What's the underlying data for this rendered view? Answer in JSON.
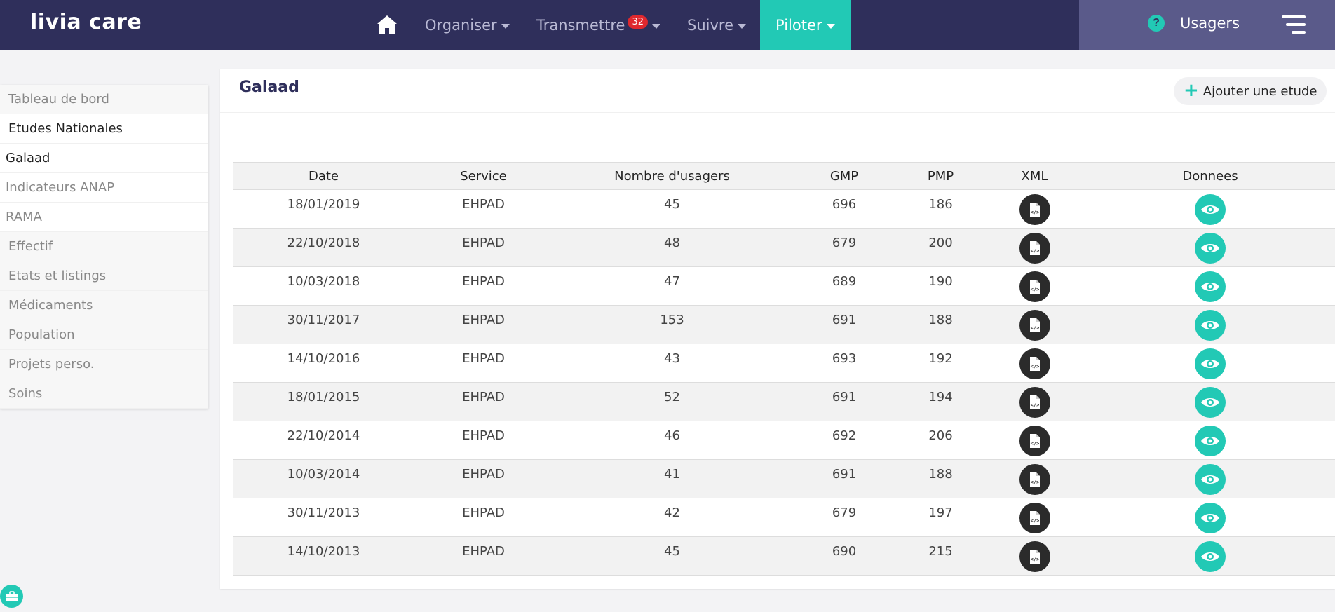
{
  "brand": "livia care",
  "nav": {
    "items": [
      {
        "label": "Organiser",
        "badge": ""
      },
      {
        "label": "Transmettre",
        "badge": "32"
      },
      {
        "label": "Suivre",
        "badge": ""
      },
      {
        "label": "Piloter",
        "badge": ""
      }
    ],
    "usagers": "Usagers",
    "help_icon_text": "?"
  },
  "sidebar": {
    "items": [
      {
        "label": "Tableau de bord"
      },
      {
        "label": "Etudes Nationales"
      },
      {
        "label": "Galaad"
      },
      {
        "label": "Indicateurs ANAP"
      },
      {
        "label": "RAMA"
      },
      {
        "label": "Effectif"
      },
      {
        "label": "Etats et listings"
      },
      {
        "label": "Médicaments"
      },
      {
        "label": "Population"
      },
      {
        "label": "Projets perso."
      },
      {
        "label": "Soins"
      }
    ]
  },
  "main": {
    "title": "Galaad",
    "add_button": "Ajouter une etude",
    "columns": [
      "Date",
      "Service",
      "Nombre d'usagers",
      "GMP",
      "PMP",
      "XML",
      "Donnees"
    ],
    "rows": [
      {
        "date": "18/01/2019",
        "service": "EHPAD",
        "usagers": "45",
        "gmp": "696",
        "pmp": "186"
      },
      {
        "date": "22/10/2018",
        "service": "EHPAD",
        "usagers": "48",
        "gmp": "679",
        "pmp": "200"
      },
      {
        "date": "10/03/2018",
        "service": "EHPAD",
        "usagers": "47",
        "gmp": "689",
        "pmp": "190"
      },
      {
        "date": "30/11/2017",
        "service": "EHPAD",
        "usagers": "153",
        "gmp": "691",
        "pmp": "188"
      },
      {
        "date": "14/10/2016",
        "service": "EHPAD",
        "usagers": "43",
        "gmp": "693",
        "pmp": "192"
      },
      {
        "date": "18/01/2015",
        "service": "EHPAD",
        "usagers": "52",
        "gmp": "691",
        "pmp": "194"
      },
      {
        "date": "22/10/2014",
        "service": "EHPAD",
        "usagers": "46",
        "gmp": "692",
        "pmp": "206"
      },
      {
        "date": "10/03/2014",
        "service": "EHPAD",
        "usagers": "41",
        "gmp": "691",
        "pmp": "188"
      },
      {
        "date": "30/11/2013",
        "service": "EHPAD",
        "usagers": "42",
        "gmp": "679",
        "pmp": "197"
      },
      {
        "date": "14/10/2013",
        "service": "EHPAD",
        "usagers": "45",
        "gmp": "690",
        "pmp": "215"
      }
    ]
  },
  "colors": {
    "nav_bg": "#2f2f5b",
    "accent": "#22c9b5",
    "badge": "#e0282e",
    "dark_button": "#2b2b2b"
  }
}
